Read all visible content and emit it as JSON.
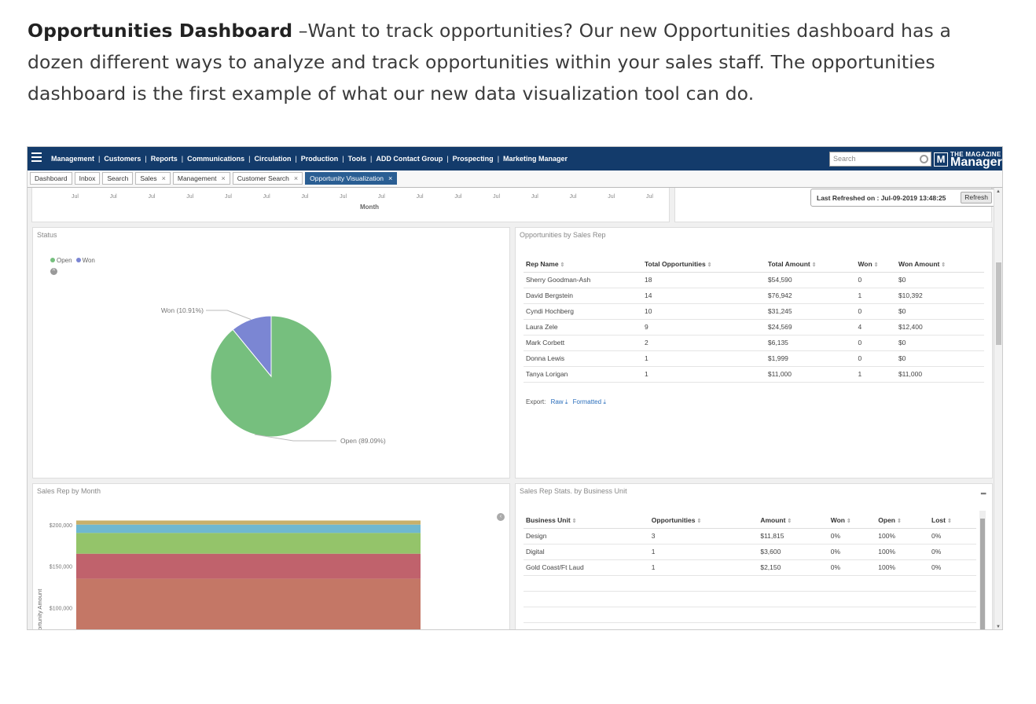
{
  "intro": {
    "bold": "Opportunities Dashboard",
    "text": " –Want to track opportunities? Our new Opportunities dashboard has a dozen different ways to analyze and track opportunities within your sales staff. The opportunities dashboard is the first example of what our new data visualization tool can do."
  },
  "nav": {
    "menu": [
      "Management",
      "Customers",
      "Reports",
      "Communications",
      "Circulation",
      "Production",
      "Tools",
      "ADD Contact Group",
      "Prospecting",
      "Marketing Manager"
    ],
    "search_placeholder": "Search",
    "logo_small": "THE MAGAZINE",
    "logo_big": "Manager",
    "logo_letter": "M"
  },
  "tabs": [
    {
      "label": "Dashboard",
      "closable": false,
      "active": false
    },
    {
      "label": "Inbox",
      "closable": false,
      "active": false
    },
    {
      "label": "Search",
      "closable": false,
      "active": false
    },
    {
      "label": "Sales",
      "closable": true,
      "active": false
    },
    {
      "label": "Management",
      "closable": true,
      "active": false
    },
    {
      "label": "Customer Search",
      "closable": true,
      "active": false
    },
    {
      "label": "Opportunity Visualization",
      "closable": true,
      "active": true
    }
  ],
  "month_chart": {
    "ticks": [
      "Jul",
      "Jul",
      "Jul",
      "Jul",
      "Jul",
      "Jul",
      "Jul",
      "Jul",
      "Jul",
      "Jul",
      "Jul",
      "Jul",
      "Jul",
      "Jul",
      "Jul",
      "Jul"
    ],
    "xlabel": "Month"
  },
  "refresh": {
    "label": "Last Refreshed on : Jul-09-2019 13:48:25",
    "button": "Refresh"
  },
  "status": {
    "title": "Status",
    "legend": [
      {
        "name": "Open",
        "color": "#76bf7e"
      },
      {
        "name": "Won",
        "color": "#7b86d3"
      }
    ],
    "labels": {
      "won": "Won (10.91%)",
      "open": "Open (89.09%)"
    }
  },
  "chart_data": [
    {
      "type": "pie",
      "title": "Status",
      "slices": [
        {
          "name": "Open",
          "value": 89.09,
          "color": "#76bf7e"
        },
        {
          "name": "Won",
          "value": 10.91,
          "color": "#7b86d3"
        }
      ]
    },
    {
      "type": "area",
      "title": "Sales Rep by Month",
      "ylabel": "Opportunity Amount",
      "yticks": [
        "$200,000",
        "$150,000",
        "$100,000"
      ],
      "ylim": [
        60000,
        230000
      ],
      "band_tops": [
        205000,
        200000,
        190000,
        165000,
        135000
      ],
      "band_colors": [
        "#c8b06a",
        "#6fb8d0",
        "#94c46a",
        "#c0626c",
        "#c47766"
      ]
    }
  ],
  "rep_table": {
    "title": "Opportunities by Sales Rep",
    "headers": [
      "Rep Name",
      "Total Opportunities",
      "Total Amount",
      "Won",
      "Won Amount"
    ],
    "rows": [
      [
        "Sherry Goodman-Ash",
        "18",
        "$54,590",
        "0",
        "$0"
      ],
      [
        "David Bergstein",
        "14",
        "$76,942",
        "1",
        "$10,392"
      ],
      [
        "Cyndi Hochberg",
        "10",
        "$31,245",
        "0",
        "$0"
      ],
      [
        "Laura Zele",
        "9",
        "$24,569",
        "4",
        "$12,400"
      ],
      [
        "Mark Corbett",
        "2",
        "$6,135",
        "0",
        "$0"
      ],
      [
        "Donna Lewis",
        "1",
        "$1,999",
        "0",
        "$0"
      ],
      [
        "Tanya Lorigan",
        "1",
        "$11,000",
        "1",
        "$11,000"
      ]
    ],
    "export_label": "Export:",
    "export_raw": "Raw",
    "export_formatted": "Formatted"
  },
  "srm": {
    "title": "Sales Rep by Month"
  },
  "bu_table": {
    "title": "Sales Rep Stats. by Business Unit",
    "headers": [
      "Business Unit",
      "Opportunities",
      "Amount",
      "Won",
      "Open",
      "Lost"
    ],
    "rows": [
      [
        "Design",
        "3",
        "$11,815",
        "0%",
        "100%",
        "0%"
      ],
      [
        "Digital",
        "1",
        "$3,600",
        "0%",
        "100%",
        "0%"
      ],
      [
        "Gold Coast/Ft Laud",
        "1",
        "$2,150",
        "0%",
        "100%",
        "0%"
      ],
      [
        "",
        "",
        "",
        "",
        "",
        ""
      ],
      [
        "",
        "",
        "",
        "",
        "",
        ""
      ],
      [
        "",
        "",
        "",
        "",
        "",
        ""
      ]
    ]
  }
}
